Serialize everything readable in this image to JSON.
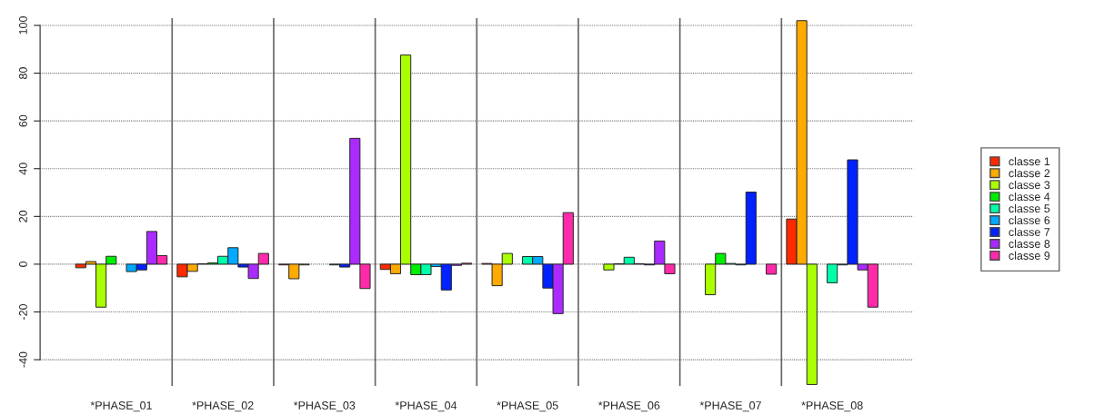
{
  "chart_data": {
    "type": "bar",
    "categories": [
      "*PHASE_01",
      "*PHASE_02",
      "*PHASE_03",
      "*PHASE_04",
      "*PHASE_05",
      "*PHASE_06",
      "*PHASE_07",
      "*PHASE_08"
    ],
    "series": [
      {
        "name": "classe 1",
        "color": "#ff2a00",
        "values": [
          -1.5,
          -5.3,
          -0.3,
          -2.2,
          0.3,
          null,
          null,
          18.9
        ]
      },
      {
        "name": "classe 2",
        "color": "#ffaa00",
        "values": [
          1.1,
          -3,
          -6.1,
          -4,
          -9,
          null,
          null,
          102
        ]
      },
      {
        "name": "classe 3",
        "color": "#aaff00",
        "values": [
          -18,
          0.2,
          -0.3,
          87.6,
          4.5,
          -2.4,
          -12.8,
          -50.4
        ]
      },
      {
        "name": "classe 4",
        "color": "#00ee00",
        "values": [
          3.3,
          0.5,
          null,
          -4.4,
          null,
          0.2,
          4.5,
          null
        ]
      },
      {
        "name": "classe 5",
        "color": "#00ffaa",
        "values": [
          null,
          3.3,
          null,
          -4.4,
          3.2,
          2.9,
          0.3,
          -7.8
        ]
      },
      {
        "name": "classe 6",
        "color": "#00aaff",
        "values": [
          -3.1,
          6.9,
          -0.3,
          -1,
          3.2,
          0.2,
          -0.3,
          -0.3
        ]
      },
      {
        "name": "classe 7",
        "color": "#0022ff",
        "values": [
          -2.4,
          -1.2,
          -1.2,
          -10.8,
          -10,
          -0.3,
          30.2,
          43.7
        ]
      },
      {
        "name": "classe 8",
        "color": "#aa2aff",
        "values": [
          13.7,
          -6,
          52.7,
          -0.5,
          -20.7,
          9.7,
          null,
          -2.4
        ]
      },
      {
        "name": "classe 9",
        "color": "#ff2aaa",
        "values": [
          3.6,
          4.5,
          -10.2,
          0.4,
          21.6,
          -4,
          -4.2,
          -18
        ]
      }
    ],
    "ylim": [
      -51,
      103
    ],
    "yticks": [
      -40,
      -20,
      0,
      20,
      40,
      60,
      80,
      100
    ],
    "grid": "y",
    "legend": "right"
  }
}
